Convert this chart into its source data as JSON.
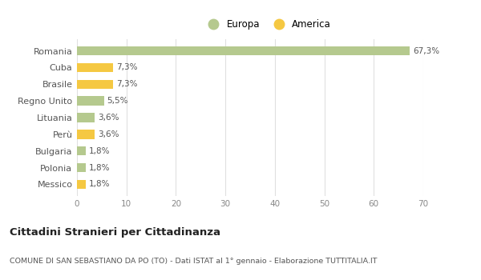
{
  "categories": [
    "Romania",
    "Cuba",
    "Brasile",
    "Regno Unito",
    "Lituania",
    "Perù",
    "Bulgaria",
    "Polonia",
    "Messico"
  ],
  "values": [
    67.3,
    7.3,
    7.3,
    5.5,
    3.6,
    3.6,
    1.8,
    1.8,
    1.8
  ],
  "labels": [
    "67,3%",
    "7,3%",
    "7,3%",
    "5,5%",
    "3,6%",
    "3,6%",
    "1,8%",
    "1,8%",
    "1,8%"
  ],
  "colors": [
    "#b5c98e",
    "#f5c842",
    "#f5c842",
    "#b5c98e",
    "#b5c98e",
    "#f5c842",
    "#b5c98e",
    "#b5c98e",
    "#f5c842"
  ],
  "europa_color": "#b5c98e",
  "america_color": "#f5c842",
  "xlim": [
    0,
    70
  ],
  "xticks": [
    0,
    10,
    20,
    30,
    40,
    50,
    60,
    70
  ],
  "title": "Cittadini Stranieri per Cittadinanza",
  "subtitle": "COMUNE DI SAN SEBASTIANO DA PO (TO) - Dati ISTAT al 1° gennaio - Elaborazione TUTTITALIA.IT",
  "legend_europa": "Europa",
  "legend_america": "America",
  "background_color": "#ffffff",
  "grid_color": "#e0e0e0",
  "bar_height": 0.55
}
